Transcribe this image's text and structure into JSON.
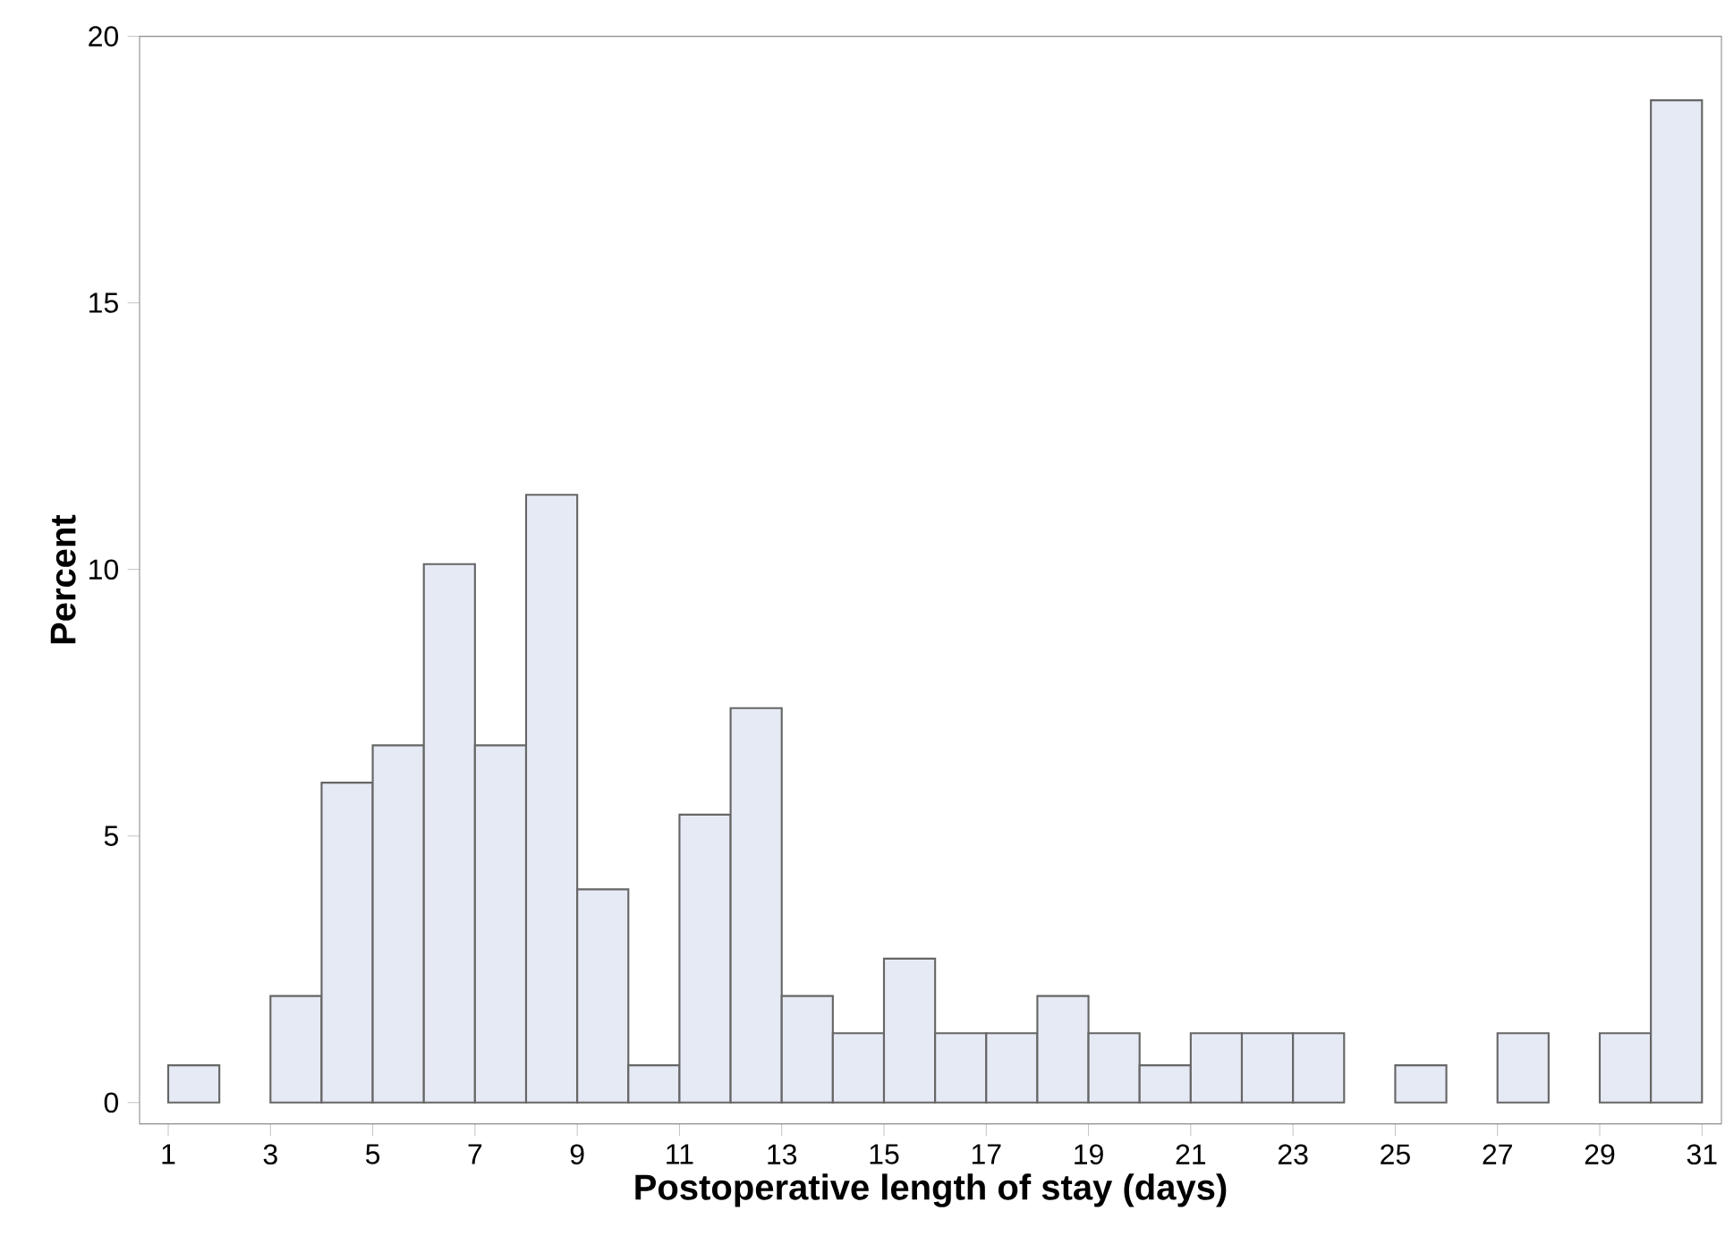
{
  "chart_data": {
    "type": "histogram",
    "xlabel": "Postoperative length of stay (days)",
    "ylabel": "Percent",
    "bins": [
      1,
      2,
      3,
      4,
      5,
      6,
      7,
      8,
      9,
      10,
      11,
      12,
      13,
      14,
      15,
      16,
      17,
      18,
      19,
      20,
      21,
      22,
      23,
      24,
      25,
      26,
      27,
      28,
      29,
      30,
      31
    ],
    "values": [
      0.7,
      0,
      2.0,
      6.0,
      6.7,
      10.1,
      6.7,
      11.4,
      4.0,
      0.7,
      5.4,
      7.4,
      2.0,
      1.3,
      2.7,
      1.3,
      1.3,
      2.0,
      1.3,
      0.7,
      1.3,
      1.3,
      1.3,
      0,
      0.7,
      0,
      1.3,
      0,
      1.3,
      18.8
    ],
    "color": "#e6eaf5",
    "xlim": [
      0.44,
      31.38
    ],
    "ylim": [
      -0.4,
      20
    ],
    "xticks": [
      1,
      3,
      5,
      7,
      9,
      11,
      13,
      15,
      17,
      19,
      21,
      23,
      25,
      27,
      29,
      31
    ],
    "yticks": [
      0,
      5,
      10,
      15,
      20
    ],
    "grid": false
  }
}
